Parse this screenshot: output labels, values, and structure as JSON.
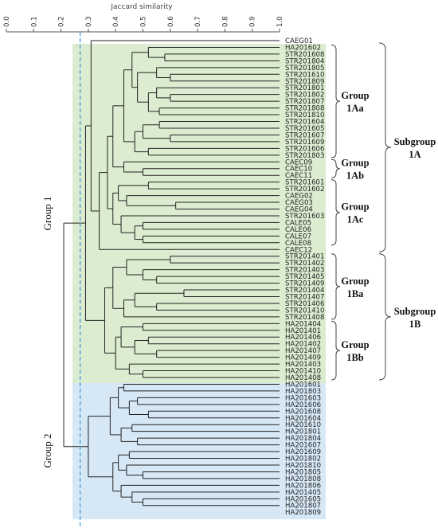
{
  "axis": {
    "title": "Jaccard similarity",
    "ticks": [
      "0.0",
      "0.1",
      "0.2",
      "0.3",
      "0.4",
      "0.5",
      "0.6",
      "0.7",
      "0.8",
      "0.9",
      "1.0"
    ],
    "cutoff_similarity": 0.27
  },
  "colors": {
    "group1_fill": "#dcecd0",
    "group2_fill": "#d6e8f6",
    "cutoff_line": "#3a9ad9",
    "tree_line": "#222222"
  },
  "groups": {
    "group1": "Group 1",
    "group2": "Group 2"
  },
  "brackets": {
    "g1aa": [
      "Group",
      "1Aa"
    ],
    "g1ab": [
      "Group",
      "1Ab"
    ],
    "g1ac": [
      "Group",
      "1Ac"
    ],
    "g1ba": [
      "Group",
      "1Ba"
    ],
    "g1bb": [
      "Group",
      "1Bb"
    ],
    "s1a": [
      "Subgroup",
      "1A"
    ],
    "s1b": [
      "Subgroup",
      "1B"
    ]
  },
  "leaves": [
    "CAEG01",
    "HA201602",
    "STR201608",
    "STR201804",
    "STR201805",
    "STR201610",
    "STR201809",
    "STR201801",
    "STR201802",
    "STR201807",
    "STR201808",
    "STR201810",
    "STR201604",
    "STR201605",
    "STR201607",
    "STR201609",
    "STR201606",
    "STR201803",
    "CAEC09",
    "CAEC10",
    "CAEC11",
    "STR201601",
    "STR201602",
    "CAEG02",
    "CAEG03",
    "CAEG04",
    "STR201603",
    "CALE05",
    "CALE06",
    "CALE07",
    "CALE08",
    "CAEC12",
    "STR201401",
    "STR201402",
    "STR201403",
    "STR201405",
    "STR201409",
    "STR201404",
    "STR201407",
    "STR201406",
    "STR201410",
    "STR201408",
    "HA201404",
    "HA201401",
    "HA201406",
    "HA201402",
    "HA201407",
    "HA201409",
    "HA201403",
    "HA201410",
    "HA201408",
    "HA201601",
    "HA201803",
    "HA201603",
    "HA201606",
    "HA201608",
    "HA201604",
    "HA201610",
    "HA201801",
    "HA201804",
    "HA201607",
    "HA201609",
    "HA201802",
    "HA201810",
    "HA201805",
    "HA201808",
    "HA201806",
    "HA201405",
    "HA201605",
    "HA201807",
    "HA201809"
  ]
}
